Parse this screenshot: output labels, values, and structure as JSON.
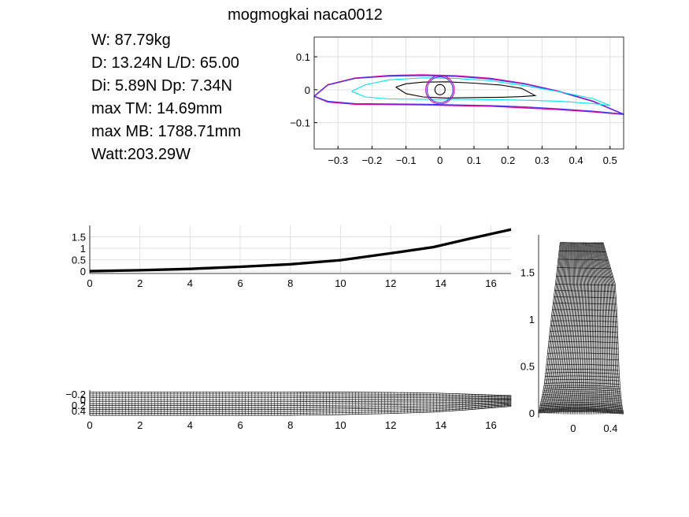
{
  "figure_title": "mogmogkai naca0012",
  "stats": {
    "weight": "W: 87.79kg",
    "drag": "D: 13.24N L/D: 65.00",
    "drag_split": "Di: 5.89N Dp: 7.34N",
    "max_tm": "max TM: 14.69mm",
    "max_mb": "max MB: 1788.71mm",
    "power": "Watt:203.29W"
  },
  "colors": {
    "cyan": "#00e5ee",
    "magenta": "#e0009c",
    "blue": "#3a3aff",
    "black": "#000000",
    "grid": "#e0e0e0"
  },
  "chart_data": [
    {
      "type": "line",
      "name": "airfoil-sections",
      "xlim": [
        -0.37,
        0.54
      ],
      "ylim": [
        -0.18,
        0.16
      ],
      "x_ticks": [
        -0.3,
        -0.2,
        -0.1,
        0,
        0.1,
        0.2,
        0.3,
        0.4,
        0.5
      ],
      "x_tick_labels": [
        "−0.3",
        "−0.2",
        "−0.1",
        "0",
        "0.1",
        "0.2",
        "0.3",
        "0.4",
        "0.5"
      ],
      "y_ticks": [
        0.1,
        0,
        -0.1
      ],
      "y_tick_labels": [
        "0.1",
        "0",
        "−0.1"
      ],
      "grid": true,
      "series": [
        {
          "color": "magenta",
          "x": [
            -0.37,
            -0.33,
            -0.25,
            -0.15,
            -0.05,
            0.05,
            0.15,
            0.25,
            0.35,
            0.45,
            0.54,
            0.45,
            0.35,
            0.25,
            0.15,
            0.05,
            -0.05,
            -0.15,
            -0.25,
            -0.33,
            -0.37
          ],
          "y": [
            -0.02,
            0.015,
            0.035,
            0.043,
            0.045,
            0.042,
            0.034,
            0.018,
            -0.005,
            -0.035,
            -0.075,
            -0.067,
            -0.06,
            -0.055,
            -0.05,
            -0.048,
            -0.046,
            -0.045,
            -0.044,
            -0.037,
            -0.02
          ]
        },
        {
          "color": "blue",
          "x": [
            -0.37,
            -0.33,
            -0.25,
            -0.15,
            -0.05,
            0.05,
            0.15,
            0.25,
            0.35,
            0.45,
            0.54,
            0.45,
            0.35,
            0.25,
            0.15,
            0.05,
            -0.05,
            -0.15,
            -0.25,
            -0.33,
            -0.37
          ],
          "y": [
            -0.02,
            0.014,
            0.034,
            0.041,
            0.043,
            0.04,
            0.032,
            0.017,
            -0.006,
            -0.036,
            -0.074,
            -0.065,
            -0.058,
            -0.052,
            -0.048,
            -0.046,
            -0.044,
            -0.043,
            -0.042,
            -0.035,
            -0.02
          ]
        },
        {
          "color": "cyan",
          "x": [
            -0.26,
            -0.22,
            -0.15,
            -0.05,
            0.05,
            0.15,
            0.25,
            0.35,
            0.45,
            0.5,
            0.45,
            0.35,
            0.25,
            0.15,
            0.05,
            -0.05,
            -0.15,
            -0.22,
            -0.26
          ],
          "y": [
            -0.005,
            0.015,
            0.03,
            0.036,
            0.034,
            0.027,
            0.012,
            -0.006,
            -0.027,
            -0.048,
            -0.042,
            -0.035,
            -0.032,
            -0.03,
            -0.029,
            -0.029,
            -0.028,
            -0.022,
            -0.005
          ]
        },
        {
          "color": "black",
          "x": [
            -0.13,
            -0.1,
            -0.05,
            0.02,
            0.1,
            0.18,
            0.24,
            0.28,
            0.24,
            0.18,
            0.1,
            0.02,
            -0.05,
            -0.1,
            -0.13
          ],
          "y": [
            0.008,
            0.018,
            0.023,
            0.024,
            0.02,
            0.014,
            0.004,
            -0.018,
            -0.021,
            -0.023,
            -0.024,
            -0.025,
            -0.022,
            -0.012,
            0.008
          ]
        }
      ],
      "circles": [
        {
          "color": "magenta",
          "cx": 0,
          "cy": 0,
          "r": 0.042
        },
        {
          "color": "blue",
          "cx": 0,
          "cy": 0,
          "r": 0.038
        },
        {
          "color": "black",
          "cx": 0,
          "cy": 0,
          "r": 0.015
        }
      ]
    },
    {
      "type": "line",
      "name": "wing-bending",
      "xlim": [
        0,
        16.8
      ],
      "ylim": [
        -0.1,
        2.0
      ],
      "x_ticks": [
        0,
        2,
        4,
        6,
        8,
        10,
        12,
        14,
        16
      ],
      "y_ticks": [
        0,
        0.5,
        1,
        1.5
      ],
      "grid": true,
      "x": [
        0,
        2,
        4,
        6,
        8,
        10,
        12,
        13.7,
        15,
        16.8
      ],
      "y": [
        0,
        0.04,
        0.1,
        0.19,
        0.3,
        0.48,
        0.78,
        1.05,
        1.38,
        1.82
      ]
    },
    {
      "type": "line",
      "name": "wing-planform",
      "xlim": [
        0,
        16.8
      ],
      "ylim": [
        -0.25,
        0.45
      ],
      "x_ticks": [
        0,
        2,
        4,
        6,
        8,
        10,
        12,
        14,
        16
      ],
      "y_tick_labels": [
        "−0.2",
        "0",
        "0.2",
        "0.4"
      ],
      "grid": false,
      "span_stations": [
        0,
        2,
        4,
        6,
        8,
        10,
        12,
        13.7,
        15,
        16.8
      ],
      "leading_edge": [
        -0.2,
        -0.2,
        -0.2,
        -0.2,
        -0.2,
        -0.195,
        -0.185,
        -0.17,
        -0.14,
        -0.1
      ],
      "trailing_edge": [
        0.45,
        0.45,
        0.45,
        0.45,
        0.45,
        0.43,
        0.4,
        0.36,
        0.3,
        0.2
      ]
    },
    {
      "type": "line",
      "name": "front-view",
      "xlim": [
        -0.37,
        0.54
      ],
      "ylim": [
        -0.05,
        1.9
      ],
      "x_ticks": [
        0,
        0.4
      ],
      "y_ticks": [
        0,
        0.5,
        1,
        1.5
      ],
      "grid": false,
      "heights": [
        0,
        0.04,
        0.1,
        0.19,
        0.3,
        0.48,
        0.78,
        1.05,
        1.38,
        1.82
      ],
      "left_edge": [
        -0.37,
        -0.36,
        -0.35,
        -0.33,
        -0.31,
        -0.29,
        -0.26,
        -0.23,
        -0.19,
        -0.14
      ],
      "right_edge": [
        0.54,
        0.53,
        0.52,
        0.51,
        0.5,
        0.49,
        0.48,
        0.47,
        0.45,
        0.32
      ]
    }
  ]
}
